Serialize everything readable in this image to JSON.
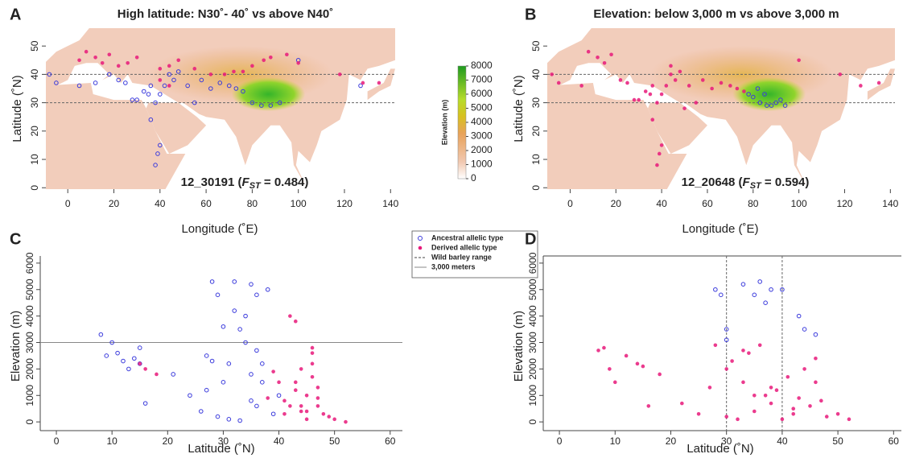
{
  "chart_data": [
    {
      "type": "map",
      "panel": "A",
      "title": "High latitude: N30˚- 40˚ vs above N40˚",
      "xlabel": "Longitude (˚E)",
      "ylabel": "Latitude (˚N)",
      "xlim": [
        -9.5,
        142
      ],
      "ylim": [
        -0.5,
        56.3
      ],
      "xticks": [
        0,
        20,
        40,
        60,
        80,
        100,
        120,
        140
      ],
      "yticks": [
        0,
        10,
        20,
        30,
        40,
        50
      ],
      "hlines": {
        "values": [
          30,
          40
        ],
        "style": "dashed"
      },
      "annotation": {
        "text": "12_30191 (",
        "stat": "F",
        "subscript": "ST",
        "rest": " = 0.484)"
      },
      "colorbar": {
        "label": "Elevation (m)",
        "lim": [
          0,
          8000
        ],
        "ticks": [
          0,
          1000,
          2000,
          3000,
          4000,
          5000,
          6000,
          7000,
          8000
        ]
      },
      "series": [
        {
          "name": "Ancestral allelic type",
          "color": "#3b3bdc",
          "marker": "open",
          "x": [
            -8,
            -5,
            5,
            12,
            18,
            22,
            25,
            28,
            30,
            33,
            35,
            36,
            38,
            40,
            42,
            44,
            46,
            48,
            52,
            55,
            58,
            62,
            66,
            70,
            73,
            76,
            80,
            84,
            88,
            92,
            38,
            39,
            40,
            36,
            127,
            100
          ],
          "values": [
            40,
            37,
            36,
            37,
            40,
            38,
            37,
            31,
            31,
            34,
            33,
            36,
            30,
            33,
            36,
            40,
            38,
            41,
            36,
            30,
            38,
            35,
            37,
            36,
            35,
            34,
            30,
            29,
            29,
            30,
            8,
            12,
            15,
            24,
            36,
            45
          ]
        },
        {
          "name": "Derived allelic type",
          "color": "#e8197a",
          "marker": "filled",
          "x": [
            5,
            8,
            12,
            15,
            18,
            22,
            26,
            30,
            40,
            44,
            48,
            55,
            62,
            68,
            72,
            76,
            80,
            85,
            88,
            95,
            100,
            118,
            128,
            135,
            40,
            44
          ],
          "values": [
            45,
            48,
            46,
            44,
            47,
            43,
            44,
            46,
            42,
            43,
            45,
            42,
            40,
            40,
            41,
            41,
            43,
            45,
            46,
            47,
            44,
            40,
            37,
            37,
            38,
            36
          ]
        }
      ]
    },
    {
      "type": "map",
      "panel": "B",
      "title": "Elevation: below 3,000 m vs above 3,000 m",
      "xlabel": "Longitude (˚E)",
      "ylabel": "Latitude (˚N)",
      "xlim": [
        -10,
        142
      ],
      "ylim": [
        -0.5,
        56.3
      ],
      "xticks": [
        0,
        20,
        40,
        60,
        80,
        100,
        120,
        {
          "value": 140,
          "label": "140"
        }
      ],
      "yticks": [
        0,
        10,
        20,
        30,
        40,
        50
      ],
      "hlines": {
        "values": [
          30,
          40
        ],
        "style": "dashed"
      },
      "annotation": {
        "text": "12_20648 (",
        "stat": "F",
        "subscript": "ST",
        "rest": " = 0.594)"
      },
      "series": [
        {
          "name": "Ancestral allelic type",
          "color": "#3b3bdc",
          "marker": "open",
          "x": [
            78,
            80,
            83,
            86,
            88,
            90,
            92,
            94,
            85,
            82
          ],
          "values": [
            33,
            32,
            30,
            29,
            29,
            30,
            31,
            29,
            33,
            35
          ]
        },
        {
          "name": "Derived allelic type",
          "color": "#e8197a",
          "marker": "filled",
          "x": [
            -8,
            -5,
            5,
            8,
            12,
            15,
            18,
            22,
            25,
            28,
            30,
            33,
            35,
            36,
            38,
            40,
            42,
            44,
            46,
            48,
            52,
            55,
            58,
            62,
            66,
            70,
            73,
            76,
            38,
            39,
            40,
            36,
            127,
            100,
            118,
            135,
            44,
            50
          ],
          "values": [
            40,
            37,
            36,
            48,
            46,
            44,
            47,
            38,
            37,
            31,
            31,
            34,
            33,
            36,
            30,
            33,
            36,
            40,
            38,
            41,
            36,
            30,
            38,
            35,
            37,
            36,
            35,
            34,
            8,
            12,
            15,
            24,
            36,
            45,
            40,
            37,
            43,
            28
          ]
        }
      ]
    },
    {
      "type": "scatter",
      "panel": "C",
      "xlabel": "Latitude (˚N)",
      "ylabel": "Elevation (m)",
      "xlim": [
        -2.9,
        62.2
      ],
      "ylim": [
        -330,
        6270
      ],
      "xticks": [
        0,
        10,
        20,
        30,
        40,
        50,
        60
      ],
      "yticks": [
        0,
        1000,
        2000,
        3000,
        4000,
        5000,
        6000
      ],
      "hline": {
        "name": "3,000 meters",
        "value": 3000
      },
      "series": [
        {
          "name": "Ancestral allelic type",
          "color": "#3b3bdc",
          "marker": "open",
          "x": [
            8,
            9,
            10,
            11,
            12,
            13,
            14,
            15,
            16,
            15,
            21,
            24,
            26,
            27,
            28,
            29,
            30,
            31,
            32,
            33,
            34,
            35,
            36,
            37,
            38,
            29,
            33,
            35,
            36,
            27,
            31,
            34,
            37,
            39,
            40,
            28,
            32,
            30,
            36,
            35
          ],
          "values": [
            3300,
            2500,
            3000,
            2600,
            2300,
            2000,
            2400,
            2200,
            700,
            2800,
            1800,
            1000,
            400,
            2500,
            5300,
            4800,
            1500,
            2200,
            5300,
            3500,
            3000,
            5200,
            4800,
            2200,
            5000,
            200,
            50,
            800,
            600,
            1200,
            100,
            4000,
            1500,
            300,
            1000,
            2300,
            4200,
            3600,
            2700,
            1800
          ]
        },
        {
          "name": "Derived allelic type",
          "color": "#e8197a",
          "marker": "filled",
          "x": [
            15,
            16,
            18,
            38,
            40,
            41,
            42,
            42,
            43,
            43,
            44,
            44,
            45,
            45,
            46,
            46,
            46,
            47,
            47,
            48,
            49,
            50,
            52,
            39,
            41,
            44,
            46,
            47,
            45,
            43
          ],
          "values": [
            2200,
            2000,
            1800,
            900,
            1500,
            300,
            4000,
            600,
            3800,
            1200,
            2000,
            400,
            1000,
            100,
            2800,
            2200,
            1700,
            1300,
            600,
            300,
            200,
            100,
            0,
            1900,
            800,
            600,
            2600,
            900,
            400,
            1500
          ]
        }
      ]
    },
    {
      "type": "scatter",
      "panel": "D",
      "xlabel": "Latitude (˚N)",
      "ylabel": "Elevation (m)",
      "xlim": [
        -2.9,
        61.4
      ],
      "ylim": [
        -330,
        6270
      ],
      "xticks": [
        0,
        10,
        20,
        30,
        40,
        50,
        60
      ],
      "yticks": [
        0,
        1000,
        2000,
        3000,
        4000,
        5000,
        6000
      ],
      "vlines": {
        "name": "Wild barley range",
        "values": [
          30,
          40
        ]
      },
      "series": [
        {
          "name": "Ancestral allelic type",
          "color": "#3b3bdc",
          "marker": "open",
          "x": [
            28,
            29,
            30,
            33,
            35,
            36,
            37,
            38,
            40,
            43,
            44,
            46,
            30
          ],
          "values": [
            5000,
            4800,
            3500,
            5200,
            4800,
            5300,
            4500,
            5000,
            5000,
            4000,
            3500,
            3300,
            3100
          ]
        },
        {
          "name": "Derived allelic type",
          "color": "#e8197a",
          "marker": "filled",
          "x": [
            7,
            8,
            9,
            10,
            12,
            14,
            15,
            16,
            18,
            22,
            25,
            27,
            28,
            30,
            31,
            32,
            33,
            34,
            35,
            36,
            37,
            38,
            39,
            40,
            41,
            42,
            43,
            44,
            45,
            46,
            46,
            47,
            48,
            50,
            52,
            30,
            33,
            35,
            38,
            42
          ],
          "values": [
            2700,
            2800,
            2000,
            1500,
            2500,
            2200,
            2100,
            600,
            1800,
            700,
            300,
            1300,
            2900,
            200,
            2300,
            100,
            1500,
            2600,
            400,
            2900,
            1000,
            700,
            1200,
            100,
            1700,
            300,
            900,
            2000,
            600,
            2400,
            1500,
            800,
            200,
            300,
            100,
            2000,
            2700,
            1000,
            1300,
            500
          ]
        }
      ]
    }
  ]
}
